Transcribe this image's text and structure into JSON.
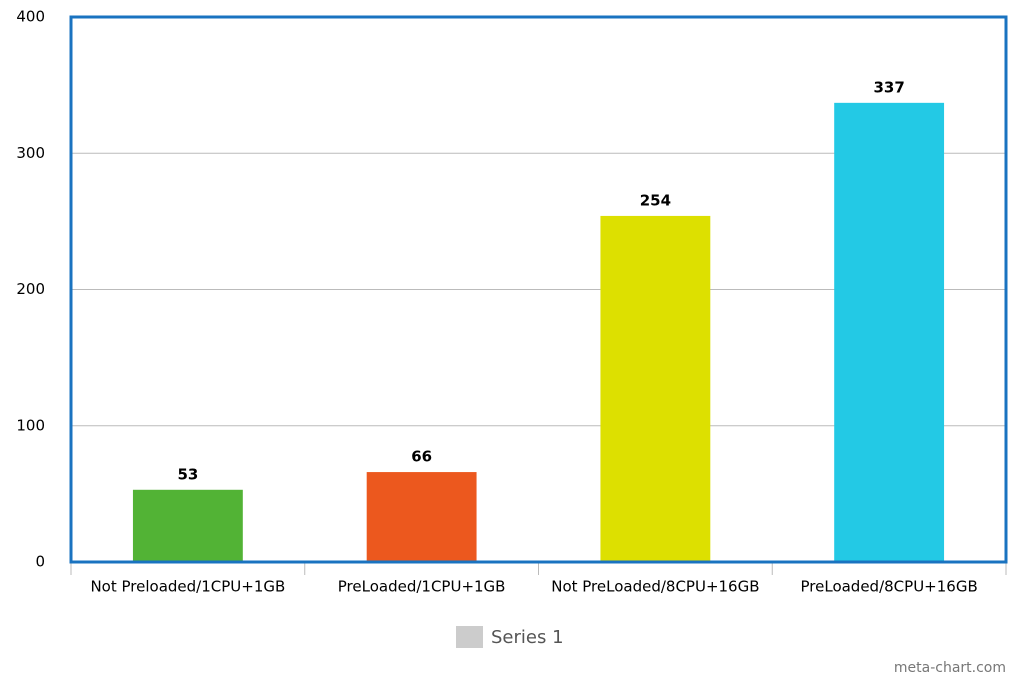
{
  "chart_data": {
    "type": "bar",
    "categories": [
      "Not Preloaded/1CPU+1GB",
      "PreLoaded/1CPU+1GB",
      "Not PreLoaded/8CPU+16GB",
      "PreLoaded/8CPU+16GB"
    ],
    "series": [
      {
        "name": "Series 1",
        "color": "#cccccc",
        "values": [
          53,
          66,
          254,
          337
        ]
      }
    ],
    "bar_colors": [
      "#52b335",
      "#ec581e",
      "#dde000",
      "#23c9e5"
    ],
    "ylim": [
      0,
      400
    ],
    "yticks": [
      0,
      100,
      200,
      300,
      400
    ],
    "grid": true,
    "legend": "bottom",
    "watermark": "meta-chart.com"
  }
}
